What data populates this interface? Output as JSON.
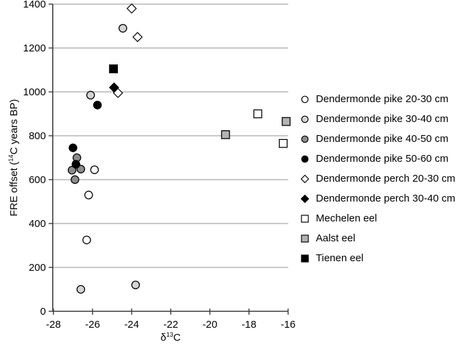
{
  "chart_data": {
    "type": "scatter",
    "title": "",
    "xlabel": {
      "prefix": "δ",
      "sup": "13",
      "suffix": "C"
    },
    "ylabel": {
      "prefix": "FRE offset (",
      "sup": "14",
      "suffix": "C years BP)"
    },
    "xlim": [
      -28,
      -16
    ],
    "ylim": [
      0,
      1400
    ],
    "xticks": [
      -28,
      -26,
      -24,
      -22,
      -20,
      -18,
      -16
    ],
    "yticks": [
      0,
      200,
      400,
      600,
      800,
      1000,
      1200,
      1400
    ],
    "grid": "horizontal-only",
    "legend_position": "right",
    "colors": {
      "background": "#ffffff",
      "axis": "#3a3a3a",
      "gridline": "#909090",
      "marker_stroke": "#000000",
      "fill_white": "#ffffff",
      "fill_light_gray": "#d4d4d4",
      "fill_dark_gray": "#8c8c8c",
      "fill_mid_gray": "#b3b3b3",
      "fill_black": "#000000"
    },
    "series": [
      {
        "name": "Dendermonde pike 20-30 cm",
        "marker": "circle",
        "fill": "#ffffff",
        "points": [
          {
            "x": -25.9,
            "y": 645
          },
          {
            "x": -26.2,
            "y": 530
          },
          {
            "x": -26.3,
            "y": 325
          }
        ]
      },
      {
        "name": "Dendermonde pike 30-40 cm",
        "marker": "circle",
        "fill": "#d4d4d4",
        "points": [
          {
            "x": -24.45,
            "y": 1290
          },
          {
            "x": -26.1,
            "y": 985
          },
          {
            "x": -26.6,
            "y": 100
          },
          {
            "x": -23.8,
            "y": 120
          }
        ]
      },
      {
        "name": "Dendermonde pike 40-50 cm",
        "marker": "circle",
        "fill": "#8c8c8c",
        "points": [
          {
            "x": -26.8,
            "y": 700
          },
          {
            "x": -26.6,
            "y": 648
          },
          {
            "x": -27.05,
            "y": 643
          },
          {
            "x": -26.9,
            "y": 600
          }
        ]
      },
      {
        "name": "Dendermonde pike 50-60 cm",
        "marker": "circle",
        "fill": "#000000",
        "points": [
          {
            "x": -27.0,
            "y": 745
          },
          {
            "x": -26.85,
            "y": 670
          },
          {
            "x": -25.75,
            "y": 940
          }
        ]
      },
      {
        "name": "Dendermonde perch 20-30 cm",
        "marker": "diamond",
        "fill": "#ffffff",
        "points": [
          {
            "x": -24.0,
            "y": 1380
          },
          {
            "x": -23.7,
            "y": 1250
          },
          {
            "x": -24.7,
            "y": 995
          }
        ]
      },
      {
        "name": "Dendermonde perch 30-40 cm",
        "marker": "diamond",
        "fill": "#000000",
        "points": [
          {
            "x": -24.9,
            "y": 1020
          }
        ]
      },
      {
        "name": "Mechelen eel",
        "marker": "square",
        "fill": "#ffffff",
        "points": [
          {
            "x": -17.55,
            "y": 900
          },
          {
            "x": -16.25,
            "y": 765
          }
        ]
      },
      {
        "name": "Aalst eel",
        "marker": "square",
        "fill": "#b3b3b3",
        "points": [
          {
            "x": -19.2,
            "y": 805
          },
          {
            "x": -16.1,
            "y": 865
          }
        ]
      },
      {
        "name": "Tienen eel",
        "marker": "square",
        "fill": "#000000",
        "points": [
          {
            "x": -24.93,
            "y": 1105
          }
        ]
      }
    ]
  }
}
